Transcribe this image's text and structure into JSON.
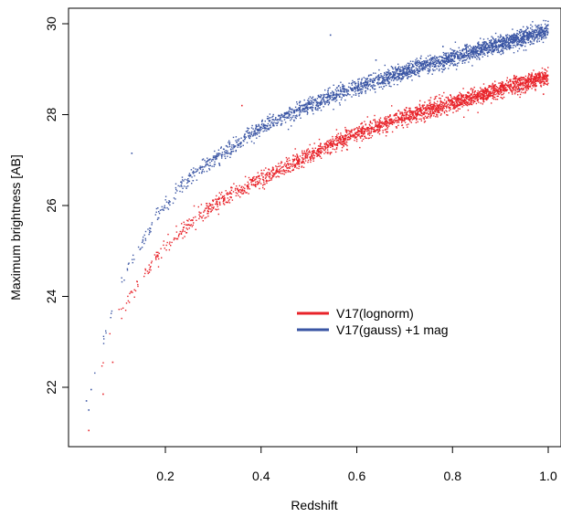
{
  "chart_data": {
    "type": "scatter",
    "xlabel": "Redshift",
    "ylabel": "Maximum brightness [AB]",
    "xlim": [
      0.03,
      1.0
    ],
    "ylim": [
      20.8,
      30.2
    ],
    "xticks": [
      "0.2",
      "0.4",
      "0.6",
      "0.8",
      "1.0"
    ],
    "yticks": [
      "22",
      "24",
      "26",
      "28",
      "30"
    ],
    "legend_position": "center-right",
    "series": [
      {
        "name": "V17(lognorm)",
        "color": "#e8232a",
        "trend": {
          "x": [
            0.05,
            0.08,
            0.1,
            0.15,
            0.2,
            0.25,
            0.3,
            0.4,
            0.5,
            0.6,
            0.7,
            0.8,
            0.9,
            1.0
          ],
          "y": [
            21.8,
            22.9,
            23.5,
            24.4,
            25.1,
            25.6,
            26.0,
            26.6,
            27.1,
            27.6,
            27.95,
            28.25,
            28.55,
            28.85
          ]
        },
        "outliers": [
          {
            "x": 0.04,
            "y": 21.05
          },
          {
            "x": 0.07,
            "y": 21.85
          },
          {
            "x": 0.09,
            "y": 22.55
          },
          {
            "x": 0.36,
            "y": 28.2
          },
          {
            "x": 0.99,
            "y": 28.45
          }
        ]
      },
      {
        "name": "V17(gauss) +1 mag",
        "color": "#3a55a4",
        "trend": {
          "x": [
            0.04,
            0.06,
            0.08,
            0.1,
            0.15,
            0.2,
            0.25,
            0.3,
            0.4,
            0.5,
            0.6,
            0.7,
            0.8,
            0.9,
            1.0
          ],
          "y": [
            21.7,
            22.6,
            23.4,
            24.1,
            25.2,
            26.0,
            26.6,
            27.0,
            27.7,
            28.2,
            28.6,
            28.95,
            29.25,
            29.55,
            29.85
          ]
        },
        "outliers": [
          {
            "x": 0.035,
            "y": 21.7
          },
          {
            "x": 0.04,
            "y": 21.5
          },
          {
            "x": 0.045,
            "y": 21.95
          },
          {
            "x": 0.13,
            "y": 27.15
          },
          {
            "x": 0.545,
            "y": 29.75
          },
          {
            "x": 0.64,
            "y": 29.2
          },
          {
            "x": 0.78,
            "y": 29.5
          },
          {
            "x": 0.94,
            "y": 28.55
          }
        ]
      }
    ]
  }
}
